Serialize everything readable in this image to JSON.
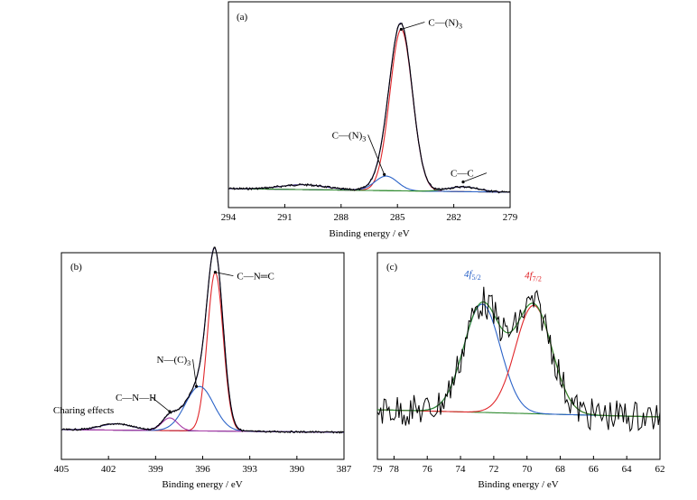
{
  "colors": {
    "raw": "#000000",
    "fit": "#3a2c7a",
    "red": "#e0262a",
    "blue": "#2b63c8",
    "green": "#2f8a2f",
    "purple": "#a63aa6"
  },
  "chart_data": [
    {
      "id": "a",
      "type": "line",
      "panel_label": "(a)",
      "xlabel": "Binding energy / eV",
      "ylabel": "",
      "xlim": [
        294,
        279
      ],
      "x_reversed": true,
      "x_ticks": [
        294,
        291,
        288,
        285,
        282,
        279
      ],
      "x_tick_labels": [
        "294",
        "291",
        "288",
        "285",
        "282",
        "279"
      ],
      "series": [
        {
          "key": "red_peak",
          "center": 284.8,
          "height": 1.0,
          "width": 0.6,
          "color": "red"
        },
        {
          "key": "blue_peak",
          "center": 285.6,
          "height": 0.09,
          "width": 0.6,
          "color": "blue"
        },
        {
          "key": "cc_peak",
          "center": 281.5,
          "height": 0.03,
          "width": 0.8,
          "color": "green"
        },
        {
          "key": "satellite",
          "center": 290.0,
          "height": 0.03,
          "width": 1.2,
          "color": "black"
        }
      ],
      "annotations": [
        {
          "main": "C—(N)",
          "sub": "3",
          "x": 284.8,
          "y": 1.0
        },
        {
          "main": "C—(N)",
          "sub": "3",
          "x": 285.7,
          "y": 0.1
        },
        {
          "main": "C—C",
          "sub": "",
          "x": 281.5,
          "y": 0.06
        }
      ]
    },
    {
      "id": "b",
      "type": "line",
      "panel_label": "(b)",
      "xlabel": "Binding energy / eV",
      "ylabel": "",
      "xlim": [
        405,
        387
      ],
      "x_reversed": true,
      "x_ticks": [
        405,
        402,
        399,
        396,
        393,
        390,
        387
      ],
      "x_tick_labels": [
        "405",
        "402",
        "399",
        "396",
        "393",
        "390",
        "387"
      ],
      "series": [
        {
          "key": "red_peak",
          "center": 395.2,
          "height": 1.0,
          "width": 0.5,
          "color": "red"
        },
        {
          "key": "blue_peak",
          "center": 396.2,
          "height": 0.28,
          "width": 0.9,
          "color": "blue"
        },
        {
          "key": "purple_peak",
          "center": 398.1,
          "height": 0.08,
          "width": 0.5,
          "color": "purple"
        },
        {
          "key": "satellite",
          "center": 401.5,
          "height": 0.04,
          "width": 1.0,
          "color": "black"
        }
      ],
      "annotations": [
        {
          "main": "C—N═C",
          "sub": "",
          "x": 395.2,
          "y": 1.0
        },
        {
          "main": "N—(C)",
          "sub": "3",
          "x": 396.4,
          "y": 0.28
        },
        {
          "main": "C—N—H",
          "sub": "",
          "x": 398.1,
          "y": 0.12
        },
        {
          "main": "Charing effects",
          "sub": "",
          "x": 401.5,
          "y": 0.06
        }
      ]
    },
    {
      "id": "c",
      "type": "line",
      "panel_label": "(c)",
      "xlabel": "Binding energy / eV",
      "ylabel": "",
      "xlim": [
        79,
        62
      ],
      "x_reversed": true,
      "x_ticks": [
        79,
        78,
        76,
        74,
        72,
        70,
        68,
        66,
        64,
        62
      ],
      "x_tick_labels": [
        "79",
        "78",
        "76",
        "74",
        "72",
        "70",
        "68",
        "66",
        "64",
        "62"
      ],
      "series": [
        {
          "key": "blue_peak",
          "center": 72.7,
          "height": 1.0,
          "width": 1.1,
          "color": "blue"
        },
        {
          "key": "red_peak",
          "center": 69.6,
          "height": 1.0,
          "width": 1.1,
          "color": "red"
        }
      ],
      "annotations": [
        {
          "main": "4f",
          "sub": "5/2",
          "x": 72.7,
          "y": 1.0
        },
        {
          "main": "4f",
          "sub": "7/2",
          "x": 69.6,
          "y": 1.0
        }
      ]
    }
  ]
}
